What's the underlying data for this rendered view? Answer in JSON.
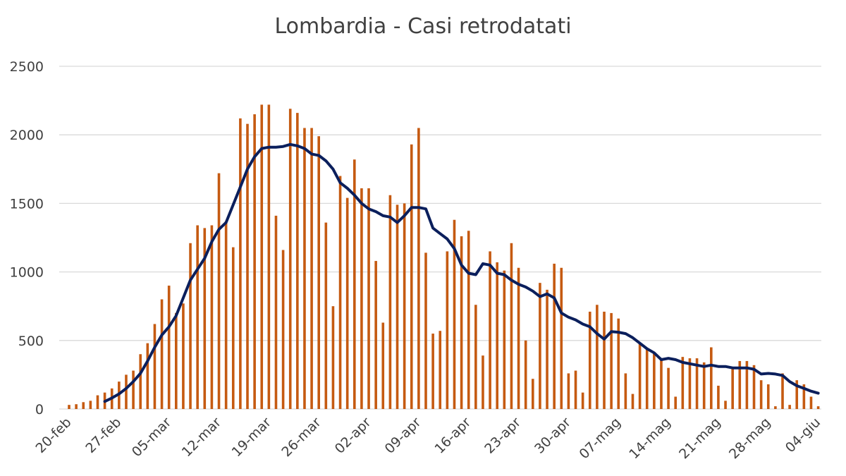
{
  "colors": {
    "bars": "#C55A11",
    "line": "#0B1F5C",
    "grid": "#D9D9D9",
    "text": "#404040"
  },
  "chart_data": {
    "type": "bar",
    "title": "Lombardia - Casi retrodatati",
    "xlabel": "",
    "ylabel": "",
    "ylim": [
      0,
      2500
    ],
    "yticks": [
      0,
      500,
      1000,
      1500,
      2000,
      2500
    ],
    "grid": true,
    "legend": "none",
    "start_date": "2020-02-20",
    "tick_labels": [
      "20-feb",
      "27-feb",
      "05-mar",
      "12-mar",
      "19-mar",
      "26-mar",
      "02-apr",
      "09-apr",
      "16-apr",
      "23-apr",
      "30-apr",
      "07-mag",
      "14-mag",
      "21-mag",
      "28-mag",
      "04-giu"
    ],
    "tick_day_index": [
      0,
      7,
      14,
      21,
      28,
      35,
      42,
      49,
      56,
      63,
      70,
      77,
      84,
      91,
      98,
      105
    ],
    "series": [
      {
        "type": "bar",
        "values": [
          30,
          35,
          50,
          60,
          100,
          120,
          150,
          200,
          250,
          280,
          400,
          480,
          620,
          800,
          900,
          700,
          770,
          1210,
          1340,
          1320,
          1340,
          1720,
          1370,
          1180,
          2120,
          2080,
          2150,
          2220,
          2220,
          1410,
          1160,
          2190,
          2160,
          2050,
          2050,
          1990,
          1360,
          750,
          1700,
          1540,
          1820,
          1610,
          1610,
          1080,
          630,
          1560,
          1490,
          1500,
          1930,
          2050,
          1140,
          550,
          570,
          1150,
          1380,
          1260,
          1300,
          760,
          390,
          1150,
          1070,
          1010,
          1210,
          1030,
          500,
          220,
          920,
          870,
          1060,
          1030,
          260,
          280,
          120,
          710,
          760,
          710,
          700,
          660,
          260,
          110,
          480,
          440,
          410,
          370,
          300,
          90,
          380,
          370,
          370,
          340,
          450,
          170,
          60,
          300,
          350,
          350,
          320,
          210,
          180,
          20,
          260,
          30,
          210,
          180,
          90,
          20
        ]
      },
      {
        "type": "line",
        "start_index": 5,
        "values": [
          55,
          80,
          110,
          150,
          200,
          260,
          350,
          450,
          540,
          600,
          680,
          810,
          940,
          1020,
          1100,
          1220,
          1310,
          1360,
          1490,
          1620,
          1750,
          1840,
          1900,
          1910,
          1910,
          1915,
          1930,
          1920,
          1900,
          1860,
          1850,
          1810,
          1750,
          1650,
          1610,
          1560,
          1500,
          1460,
          1440,
          1410,
          1400,
          1360,
          1410,
          1470,
          1470,
          1460,
          1320,
          1280,
          1240,
          1170,
          1050,
          990,
          980,
          1060,
          1050,
          990,
          980,
          940,
          910,
          890,
          860,
          820,
          840,
          810,
          700,
          670,
          650,
          620,
          600,
          550,
          510,
          565,
          560,
          550,
          520,
          480,
          440,
          410,
          360,
          370,
          360,
          340,
          330,
          320,
          310,
          320,
          310,
          310,
          300,
          300,
          300,
          290,
          255,
          260,
          255,
          245,
          200,
          170,
          150,
          130,
          115
        ]
      }
    ]
  }
}
